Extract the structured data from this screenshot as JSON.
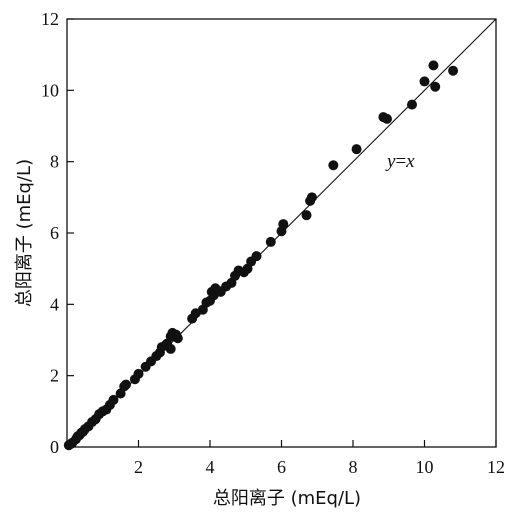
{
  "chart_data": {
    "type": "scatter",
    "title": "",
    "xlabel": "总阳离子 (mEq/L)",
    "ylabel": "总阳离子 (mEq/L)",
    "xlim": [
      0,
      12
    ],
    "ylim": [
      0,
      12
    ],
    "xticks": [
      "2",
      "4",
      "6",
      "8",
      "10",
      "12"
    ],
    "yticks": [
      "0",
      "2",
      "4",
      "6",
      "8",
      "10",
      "12"
    ],
    "grid": false,
    "legend": "none",
    "marker_color": "#111111",
    "reference_line": {
      "label": "y=x",
      "from": [
        0,
        0
      ],
      "to": [
        12,
        12
      ]
    },
    "annotations": [
      {
        "text_italic": "y",
        "text_eq": "=",
        "text_x": "x"
      }
    ],
    "series": [
      {
        "points": [
          [
            0.05,
            0.05
          ],
          [
            0.1,
            0.08
          ],
          [
            0.15,
            0.12
          ],
          [
            0.25,
            0.22
          ],
          [
            0.3,
            0.3
          ],
          [
            0.35,
            0.33
          ],
          [
            0.4,
            0.4
          ],
          [
            0.45,
            0.43
          ],
          [
            0.5,
            0.5
          ],
          [
            0.6,
            0.58
          ],
          [
            0.7,
            0.7
          ],
          [
            0.8,
            0.78
          ],
          [
            0.9,
            0.92
          ],
          [
            1.0,
            1.0
          ],
          [
            1.1,
            1.05
          ],
          [
            1.2,
            1.18
          ],
          [
            1.3,
            1.32
          ],
          [
            1.5,
            1.5
          ],
          [
            1.6,
            1.7
          ],
          [
            1.65,
            1.75
          ],
          [
            1.9,
            1.9
          ],
          [
            2.0,
            2.05
          ],
          [
            2.2,
            2.25
          ],
          [
            2.35,
            2.4
          ],
          [
            2.5,
            2.55
          ],
          [
            2.6,
            2.65
          ],
          [
            2.65,
            2.8
          ],
          [
            2.75,
            2.85
          ],
          [
            2.8,
            2.9
          ],
          [
            2.9,
            2.75
          ],
          [
            2.9,
            3.1
          ],
          [
            2.95,
            3.2
          ],
          [
            3.05,
            3.15
          ],
          [
            3.1,
            3.05
          ],
          [
            3.5,
            3.6
          ],
          [
            3.6,
            3.75
          ],
          [
            3.8,
            3.85
          ],
          [
            3.9,
            4.05
          ],
          [
            4.0,
            4.1
          ],
          [
            4.05,
            4.35
          ],
          [
            4.1,
            4.25
          ],
          [
            4.15,
            4.45
          ],
          [
            4.2,
            4.4
          ],
          [
            4.3,
            4.35
          ],
          [
            4.45,
            4.5
          ],
          [
            4.6,
            4.6
          ],
          [
            4.7,
            4.8
          ],
          [
            4.8,
            4.95
          ],
          [
            4.95,
            4.9
          ],
          [
            5.05,
            5.0
          ],
          [
            5.15,
            5.2
          ],
          [
            5.3,
            5.35
          ],
          [
            5.7,
            5.75
          ],
          [
            6.0,
            6.05
          ],
          [
            6.05,
            6.25
          ],
          [
            6.7,
            6.5
          ],
          [
            6.8,
            6.9
          ],
          [
            6.85,
            7.0
          ],
          [
            7.45,
            7.9
          ],
          [
            8.1,
            8.35
          ],
          [
            8.85,
            9.25
          ],
          [
            8.95,
            9.2
          ],
          [
            9.65,
            9.6
          ],
          [
            10.0,
            10.25
          ],
          [
            10.25,
            10.7
          ],
          [
            10.3,
            10.1
          ],
          [
            10.8,
            10.55
          ]
        ]
      }
    ]
  }
}
